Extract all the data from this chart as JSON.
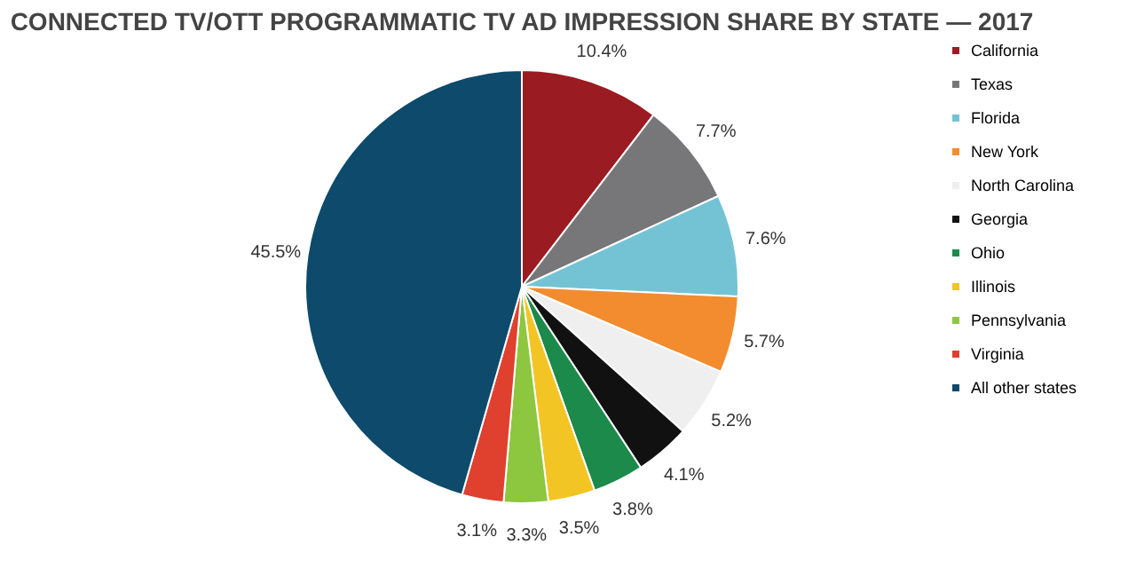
{
  "chart_data": {
    "type": "pie",
    "title": "CONNECTED TV/OTT PROGRAMMATIC TV AD IMPRESSION SHARE BY STATE — 2017",
    "categories": [
      "California",
      "Texas",
      "Florida",
      "New York",
      "North Carolina",
      "Georgia",
      "Ohio",
      "Illinois",
      "Pennsylvania",
      "Virginia",
      "All other states"
    ],
    "values": [
      10.4,
      7.7,
      7.6,
      5.7,
      5.2,
      4.1,
      3.8,
      3.5,
      3.3,
      3.1,
      45.5
    ],
    "value_labels": [
      "10.4%",
      "7.7%",
      "7.6%",
      "5.7%",
      "5.2%",
      "4.1%",
      "3.8%",
      "3.5%",
      "3.3%",
      "3.1%",
      "45.5%"
    ],
    "colors": [
      "#9b1b22",
      "#77777a",
      "#74c3d5",
      "#f28c2e",
      "#efefef",
      "#111111",
      "#1b8a4a",
      "#f2c524",
      "#8dc63f",
      "#e0402e",
      "#0d4a6b"
    ],
    "legend": "right"
  }
}
